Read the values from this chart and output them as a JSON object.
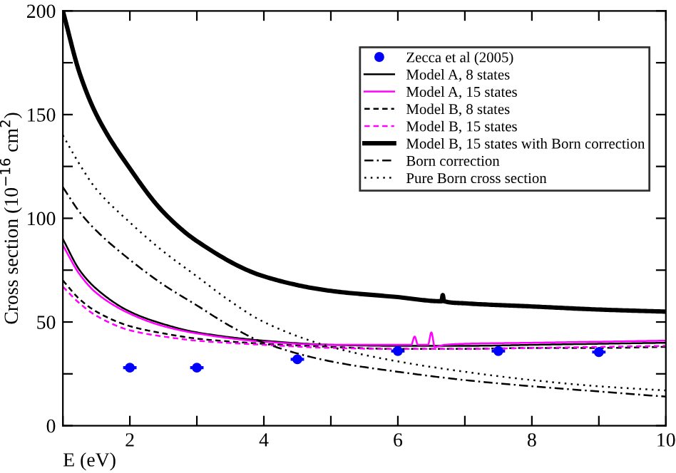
{
  "chart_data": {
    "type": "line",
    "xlabel": "E (eV)",
    "ylabel": "Cross section (10$^{−16}$ cm$^{2}$)",
    "xlim": [
      1,
      10
    ],
    "ylim": [
      0,
      200
    ],
    "xticks": [
      {
        "value": 1,
        "label": null
      },
      2,
      {
        "value": 3,
        "label": null
      },
      4,
      {
        "value": 5,
        "label": null
      },
      6,
      {
        "value": 7,
        "label": null
      },
      8,
      {
        "value": 9,
        "label": null
      },
      10
    ],
    "yticks": [
      0,
      {
        "value": 25,
        "label": null
      },
      50,
      {
        "value": 75,
        "label": null
      },
      100,
      {
        "value": 125,
        "label": null
      },
      150,
      {
        "value": 175,
        "label": null
      },
      200
    ],
    "grid": false,
    "legend": "top right",
    "series": [
      {
        "name": "Zecca et al (2005)",
        "type": "scatter",
        "marker": "circle",
        "color": "#0000ff",
        "x": [
          2,
          3,
          4.5,
          6,
          7.5,
          9
        ],
        "values": [
          28,
          28,
          32,
          36,
          36,
          35.5
        ],
        "xerrors": [
          0.1,
          0.1,
          0.1,
          0.1,
          0.1,
          0.1
        ]
      },
      {
        "name": "Model A, 8 states",
        "color": "#000000",
        "line_style": "solid",
        "x": [
          1,
          1.25,
          1.5,
          2,
          2.5,
          3,
          4,
          5,
          6,
          7,
          8,
          9,
          10
        ],
        "values": [
          90,
          75,
          66,
          55,
          49,
          45,
          41,
          39,
          38.5,
          38.5,
          39,
          39.5,
          40
        ]
      },
      {
        "name": "Model A, 15 states",
        "color": "#ff00ff",
        "line_style": "solid",
        "x": [
          1,
          1.25,
          1.5,
          2,
          2.5,
          3,
          4,
          5,
          6,
          6.2,
          6.25,
          6.3,
          6.45,
          6.5,
          6.55,
          6.7,
          7,
          8,
          9,
          10
        ],
        "values": [
          87,
          73,
          64,
          54,
          48,
          44.5,
          40.5,
          39,
          39,
          39,
          43,
          39,
          39,
          45,
          38,
          39,
          39.5,
          40,
          40.5,
          41
        ]
      },
      {
        "name": "Model B, 8 states",
        "color": "#000000",
        "line_style": "dashed",
        "x": [
          1,
          1.25,
          1.5,
          2,
          2.5,
          3,
          4,
          5,
          6,
          7,
          8,
          9,
          10
        ],
        "values": [
          70,
          61,
          55,
          48,
          44.5,
          42,
          39.5,
          38,
          37,
          37,
          37.5,
          37.5,
          38
        ]
      },
      {
        "name": "Model B, 15 states",
        "color": "#ff00ff",
        "line_style": "dashed",
        "x": [
          1,
          1.25,
          1.5,
          2,
          2.5,
          3,
          4,
          5,
          6,
          7,
          8,
          9,
          10
        ],
        "values": [
          67,
          59,
          53,
          46,
          43,
          41,
          39,
          37.5,
          37,
          37,
          37.5,
          38,
          38.5
        ]
      },
      {
        "name": "Model B, 15 states with Born correction",
        "color": "#000000",
        "line_style": "solid",
        "x": [
          1,
          1.25,
          1.5,
          2,
          2.5,
          3,
          4,
          5,
          6,
          6.65,
          6.67,
          6.69,
          7,
          8,
          9,
          10
        ],
        "values": [
          200,
          170,
          150,
          124,
          103,
          89,
          72,
          65,
          62,
          60,
          63,
          60,
          59,
          57.5,
          56,
          55
        ]
      },
      {
        "name": "Born correction",
        "color": "#000000",
        "line_style": "dashdot",
        "x": [
          1,
          1.25,
          1.5,
          2,
          2.5,
          3,
          3.5,
          4,
          5,
          6,
          7,
          8,
          9,
          10
        ],
        "values": [
          115,
          103,
          94,
          80,
          68,
          58,
          48,
          40,
          31,
          26,
          22,
          19,
          16.5,
          14
        ]
      },
      {
        "name": "Pure Born cross section",
        "color": "#000000",
        "line_style": "dotted",
        "x": [
          1,
          1.25,
          1.5,
          2,
          2.5,
          3,
          3.5,
          4,
          5,
          6,
          7,
          8,
          9,
          10
        ],
        "values": [
          140,
          126,
          114,
          98,
          84,
          72,
          60,
          50,
          38,
          31,
          26,
          22,
          19,
          17
        ]
      }
    ]
  }
}
